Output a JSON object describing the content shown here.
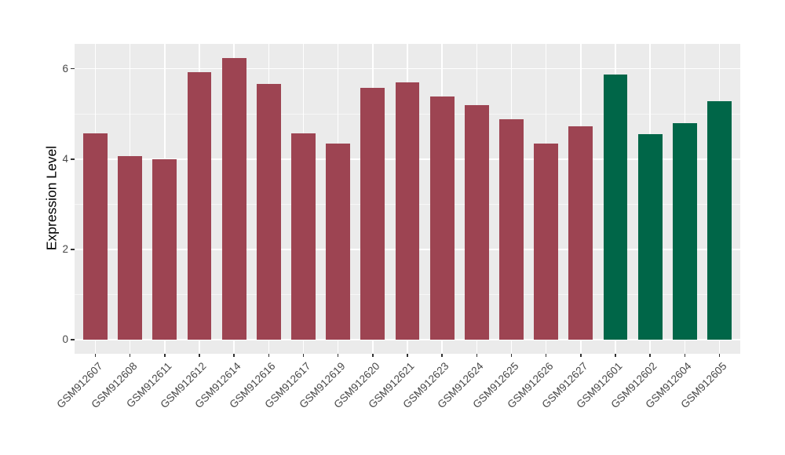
{
  "chart_data": {
    "type": "bar",
    "title": "",
    "xlabel": "",
    "ylabel": "Expression Level",
    "categories": [
      "GSM912607",
      "GSM912608",
      "GSM912611",
      "GSM912612",
      "GSM912614",
      "GSM912616",
      "GSM912617",
      "GSM912619",
      "GSM912620",
      "GSM912621",
      "GSM912623",
      "GSM912624",
      "GSM912625",
      "GSM912626",
      "GSM912627",
      "GSM912601",
      "GSM912602",
      "GSM912604",
      "GSM912605"
    ],
    "values": [
      4.57,
      4.06,
      3.99,
      5.93,
      6.23,
      5.67,
      4.57,
      4.35,
      5.57,
      5.7,
      5.38,
      5.2,
      4.88,
      4.35,
      4.73,
      5.87,
      4.56,
      4.79,
      5.29
    ],
    "groups": [
      "red",
      "red",
      "red",
      "red",
      "red",
      "red",
      "red",
      "red",
      "red",
      "red",
      "red",
      "red",
      "red",
      "red",
      "red",
      "green",
      "green",
      "green",
      "green"
    ],
    "group_colors": {
      "red": "#9D4452",
      "green": "#006648"
    },
    "yticks": [
      0,
      2,
      4,
      6
    ],
    "ytick_labels": [
      "0",
      "2",
      "4",
      "6"
    ],
    "yminor": [
      1,
      3,
      5
    ],
    "ylim": [
      -0.3,
      6.55
    ],
    "bar_width_ratio": 0.7,
    "x_label_angle_deg": 45,
    "grid": true,
    "legend_position": "none",
    "colors": {
      "panel_background": "#EBEBEB",
      "grid_major": "#FFFFFF",
      "grid_minor": "#F7F7F7",
      "axis_text": "#474747",
      "axis_title": "#000000",
      "tick_mark": "#333333",
      "figure_background": "#FFFFFF"
    }
  }
}
